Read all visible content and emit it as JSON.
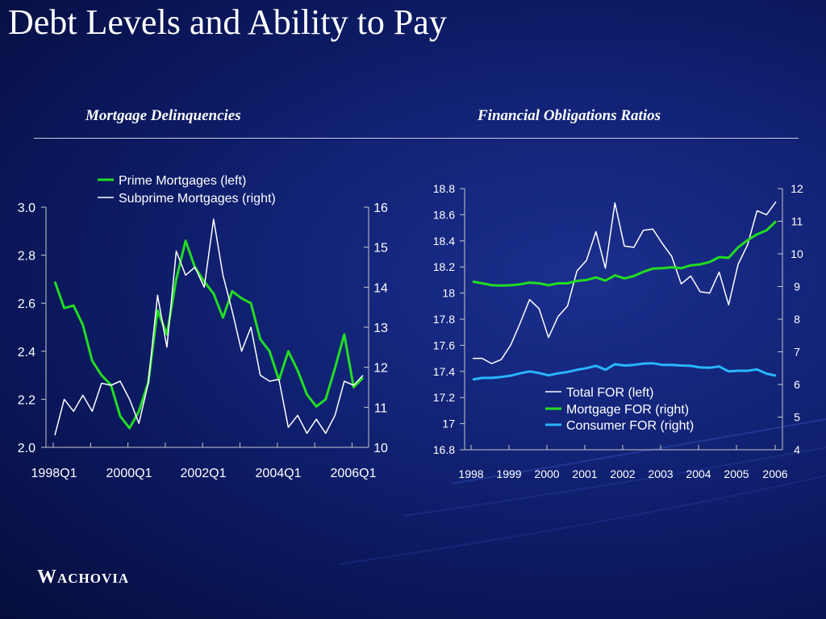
{
  "slide": {
    "title": "Debt Levels and Ability to Pay",
    "logo": "Wachovia"
  },
  "colors": {
    "green": "#22dd22",
    "white": "#ffffff",
    "cyan": "#29b6ff",
    "axis": "#c8c8c8"
  },
  "chart_data": [
    {
      "type": "line",
      "title": "Mortgage Delinquencies",
      "x_tick_labels": [
        "1998Q1",
        "2000Q1",
        "2002Q1",
        "2004Q1",
        "2006Q1"
      ],
      "y_left": {
        "range": [
          2.0,
          3.0
        ],
        "ticks": [
          "2.0",
          "2.2",
          "2.4",
          "2.6",
          "2.8",
          "3.0"
        ]
      },
      "y_right": {
        "range": [
          10,
          16
        ],
        "ticks": [
          "10",
          "11",
          "12",
          "13",
          "14",
          "15",
          "16"
        ]
      },
      "legend_position": "top-left",
      "series": [
        {
          "name": "Prime Mortgages (left)",
          "axis": "left",
          "color": "#22dd22",
          "values": [
            2.69,
            2.58,
            2.59,
            2.51,
            2.36,
            2.3,
            2.26,
            2.13,
            2.08,
            2.15,
            2.27,
            2.57,
            2.47,
            2.7,
            2.86,
            2.75,
            2.69,
            2.64,
            2.54,
            2.65,
            2.62,
            2.6,
            2.45,
            2.4,
            2.28,
            2.4,
            2.32,
            2.22,
            2.17,
            2.2,
            2.33,
            2.47,
            2.25,
            2.29
          ]
        },
        {
          "name": "Subprime Mortgages (right)",
          "axis": "right",
          "color": "#ffffff",
          "values": [
            10.3,
            11.2,
            10.9,
            11.3,
            10.9,
            11.6,
            11.55,
            11.65,
            11.2,
            10.6,
            11.6,
            13.8,
            12.5,
            14.9,
            14.3,
            14.5,
            14.0,
            15.7,
            14.3,
            13.4,
            12.4,
            13.0,
            11.8,
            11.65,
            11.7,
            10.5,
            10.8,
            10.35,
            10.7,
            10.35,
            10.8,
            11.65,
            11.55,
            11.8
          ]
        }
      ]
    },
    {
      "type": "line",
      "title": "Financial Obligations Ratios",
      "x_tick_labels": [
        "1998",
        "1999",
        "2000",
        "2001",
        "2002",
        "2003",
        "2004",
        "2005",
        "2006"
      ],
      "y_left": {
        "range": [
          16.8,
          18.8
        ],
        "ticks": [
          "16.8",
          "17",
          "17.2",
          "17.4",
          "17.6",
          "17.8",
          "18",
          "18.2",
          "18.4",
          "18.6",
          "18.8"
        ]
      },
      "y_right": {
        "range": [
          4,
          12
        ],
        "ticks": [
          "4",
          "5",
          "6",
          "7",
          "8",
          "9",
          "10",
          "11",
          "12"
        ]
      },
      "legend_position": "bottom-right",
      "series": [
        {
          "name": "Total FOR (left)",
          "axis": "left",
          "color": "#ffffff",
          "values": [
            17.5,
            17.5,
            17.46,
            17.49,
            17.6,
            17.77,
            17.95,
            17.88,
            17.66,
            17.82,
            17.9,
            18.17,
            18.25,
            18.47,
            18.19,
            18.69,
            18.36,
            18.35,
            18.48,
            18.49,
            18.38,
            18.28,
            18.07,
            18.13,
            18.01,
            18.0,
            18.16,
            17.91,
            18.22,
            18.37,
            18.63,
            18.6,
            18.7
          ]
        },
        {
          "name": "Mortgage FOR (right)",
          "axis": "right",
          "color": "#22dd22",
          "values": [
            9.15,
            9.1,
            9.04,
            9.03,
            9.04,
            9.07,
            9.12,
            9.1,
            9.04,
            9.1,
            9.1,
            9.17,
            9.2,
            9.28,
            9.18,
            9.34,
            9.25,
            9.32,
            9.45,
            9.55,
            9.56,
            9.59,
            9.56,
            9.65,
            9.68,
            9.75,
            9.9,
            9.88,
            10.2,
            10.42,
            10.6,
            10.72,
            11.0
          ]
        },
        {
          "name": "Consumer FOR (right)",
          "axis": "right",
          "color": "#29b6ff",
          "values": [
            6.15,
            6.2,
            6.2,
            6.23,
            6.27,
            6.34,
            6.4,
            6.35,
            6.28,
            6.34,
            6.38,
            6.45,
            6.5,
            6.57,
            6.45,
            6.62,
            6.58,
            6.6,
            6.64,
            6.65,
            6.6,
            6.6,
            6.58,
            6.57,
            6.52,
            6.51,
            6.55,
            6.4,
            6.42,
            6.42,
            6.46,
            6.33,
            6.27
          ]
        }
      ]
    }
  ]
}
